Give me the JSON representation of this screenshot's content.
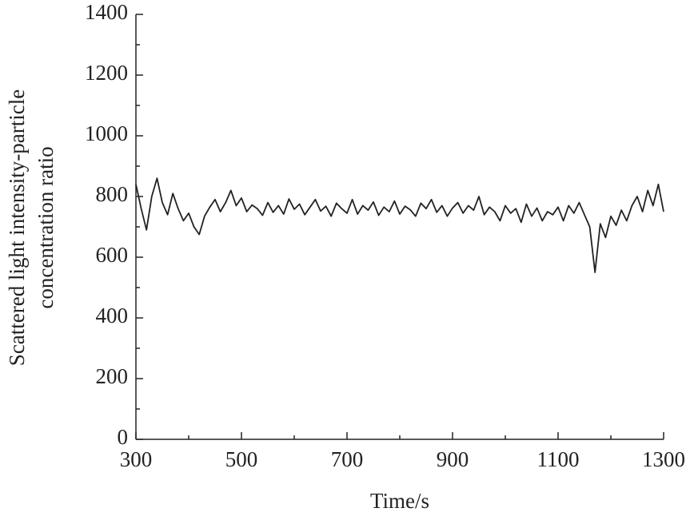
{
  "chart_data": {
    "type": "line",
    "xlabel": "Time/s",
    "ylabel": [
      "Scattered light intensity-particle",
      "concentration ratio"
    ],
    "x": [
      300,
      310,
      320,
      330,
      340,
      350,
      360,
      370,
      380,
      390,
      400,
      410,
      420,
      430,
      440,
      450,
      460,
      470,
      480,
      490,
      500,
      510,
      520,
      530,
      540,
      550,
      560,
      570,
      580,
      590,
      600,
      610,
      620,
      630,
      640,
      650,
      660,
      670,
      680,
      690,
      700,
      710,
      720,
      730,
      740,
      750,
      760,
      770,
      780,
      790,
      800,
      810,
      820,
      830,
      840,
      850,
      860,
      870,
      880,
      890,
      900,
      910,
      920,
      930,
      940,
      950,
      960,
      970,
      980,
      990,
      1000,
      1010,
      1020,
      1030,
      1040,
      1050,
      1060,
      1070,
      1080,
      1090,
      1100,
      1110,
      1120,
      1130,
      1140,
      1150,
      1160,
      1170,
      1180,
      1190,
      1200,
      1210,
      1220,
      1230,
      1240,
      1250,
      1260,
      1270,
      1280,
      1290,
      1300
    ],
    "series": [
      {
        "color": "#222222",
        "values": [
          840,
          760,
          690,
          800,
          860,
          780,
          740,
          810,
          760,
          720,
          745,
          700,
          675,
          735,
          765,
          790,
          750,
          780,
          820,
          770,
          795,
          750,
          772,
          760,
          738,
          780,
          748,
          770,
          742,
          792,
          758,
          775,
          740,
          765,
          790,
          752,
          768,
          735,
          778,
          760,
          745,
          790,
          742,
          770,
          755,
          782,
          738,
          765,
          750,
          785,
          742,
          768,
          756,
          735,
          778,
          760,
          790,
          748,
          770,
          735,
          762,
          780,
          745,
          770,
          755,
          800,
          740,
          765,
          750,
          720,
          770,
          745,
          760,
          715,
          775,
          735,
          762,
          720,
          750,
          740,
          765,
          720,
          770,
          745,
          780,
          740,
          700,
          550,
          710,
          665,
          735,
          705,
          755,
          720,
          770,
          800,
          750,
          820,
          770,
          840,
          750
        ]
      }
    ],
    "xlim": [
      300,
      1300
    ],
    "xticks": [
      300,
      500,
      700,
      900,
      1100,
      1300
    ],
    "xminorticks": [
      400,
      600,
      800,
      1000,
      1200
    ],
    "ylim": [
      0,
      1400
    ],
    "yticks": [
      0,
      200,
      400,
      600,
      800,
      1000,
      1200,
      1400
    ],
    "yminorticks": [
      100,
      300,
      500,
      700,
      900,
      1100,
      1300
    ]
  }
}
